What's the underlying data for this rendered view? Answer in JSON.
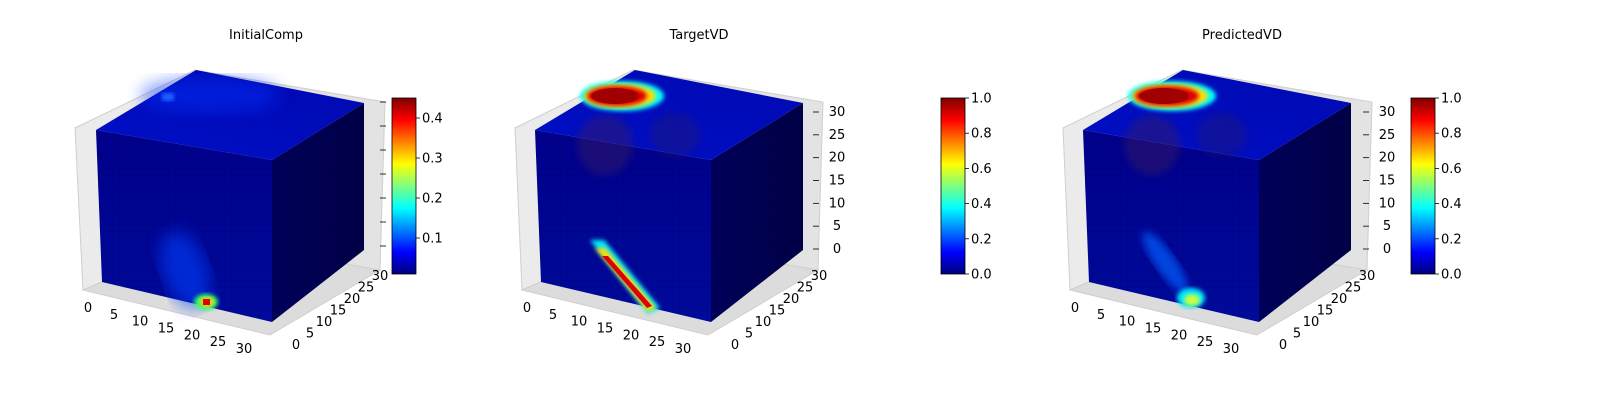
{
  "chart_data": [
    {
      "type": "heatmap",
      "view": "3d-voxel",
      "title": "InitialComp",
      "xlabel": "",
      "ylabel": "",
      "zlabel": "",
      "x_ticks": [
        "0",
        "5",
        "10",
        "15",
        "20",
        "25",
        "30"
      ],
      "y_ticks": [
        "0",
        "5",
        "10",
        "15",
        "20",
        "25",
        "30"
      ],
      "z_ticks": [],
      "xlim": [
        0,
        32
      ],
      "ylim": [
        0,
        32
      ],
      "zlim": [
        0,
        32
      ],
      "colormap": "jet",
      "colorbar": {
        "range": [
          0.01,
          0.45
        ],
        "ticks": [
          "0.1",
          "0.2",
          "0.3",
          "0.4"
        ],
        "tick_values": [
          0.1,
          0.2,
          0.3,
          0.4
        ]
      },
      "grid": true
    },
    {
      "type": "heatmap",
      "view": "3d-voxel",
      "title": "TargetVD",
      "xlabel": "",
      "ylabel": "",
      "zlabel": "",
      "x_ticks": [
        "0",
        "5",
        "10",
        "15",
        "20",
        "25",
        "30"
      ],
      "y_ticks": [
        "0",
        "5",
        "10",
        "15",
        "20",
        "25",
        "30"
      ],
      "z_ticks": [
        "0",
        "5",
        "10",
        "15",
        "20",
        "25",
        "30"
      ],
      "xlim": [
        0,
        32
      ],
      "ylim": [
        0,
        32
      ],
      "zlim": [
        0,
        32
      ],
      "colormap": "jet",
      "colorbar": {
        "range": [
          0.0,
          1.0
        ],
        "ticks": [
          "0.0",
          "0.2",
          "0.4",
          "0.6",
          "0.8",
          "1.0"
        ],
        "tick_values": [
          0,
          0.2,
          0.4,
          0.6,
          0.8,
          1.0
        ]
      },
      "grid": true
    },
    {
      "type": "heatmap",
      "view": "3d-voxel",
      "title": "PredictedVD",
      "xlabel": "",
      "ylabel": "",
      "zlabel": "",
      "x_ticks": [
        "0",
        "5",
        "10",
        "15",
        "20",
        "25",
        "30"
      ],
      "y_ticks": [
        "0",
        "5",
        "10",
        "15",
        "20",
        "25",
        "30"
      ],
      "z_ticks": [
        "0",
        "5",
        "10",
        "15",
        "20",
        "25",
        "30"
      ],
      "xlim": [
        0,
        32
      ],
      "ylim": [
        0,
        32
      ],
      "zlim": [
        0,
        32
      ],
      "colormap": "jet",
      "colorbar": {
        "range": [
          0.0,
          1.0
        ],
        "ticks": [
          "0.0",
          "0.2",
          "0.4",
          "0.6",
          "0.8",
          "1.0"
        ],
        "tick_values": [
          0,
          0.2,
          0.4,
          0.6,
          0.8,
          1.0
        ]
      },
      "grid": true
    }
  ]
}
